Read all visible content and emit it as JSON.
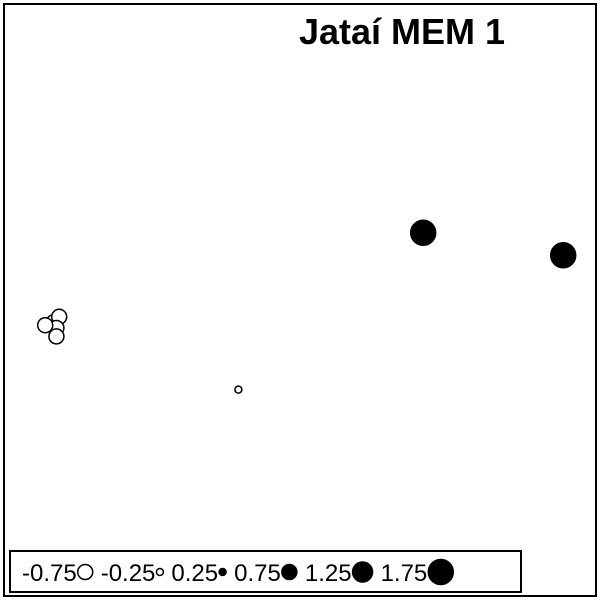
{
  "chart_data": {
    "type": "scatter",
    "title": "Jataí MEM 1",
    "xlabel": "",
    "ylabel": "",
    "grid": false,
    "legend_placement": "bottom-left",
    "fill_positive": "#000000",
    "fill_negative": "#ffffff",
    "stroke": "#000000",
    "points": [
      {
        "x": 0.72,
        "y": 0.62,
        "value": 1.75
      },
      {
        "x": 0.97,
        "y": 0.58,
        "value": 1.75
      },
      {
        "x": 0.06,
        "y": 0.46,
        "value": -0.75
      },
      {
        "x": 0.07,
        "y": 0.47,
        "value": -0.75
      },
      {
        "x": 0.065,
        "y": 0.45,
        "value": -0.75
      },
      {
        "x": 0.045,
        "y": 0.455,
        "value": -0.75
      },
      {
        "x": 0.065,
        "y": 0.435,
        "value": -0.75
      },
      {
        "x": 0.39,
        "y": 0.34,
        "value": -0.25
      }
    ],
    "legend": [
      {
        "label": "-0.75",
        "value": -0.75
      },
      {
        "label": "-0.25",
        "value": -0.25
      },
      {
        "label": "0.25",
        "value": 0.25
      },
      {
        "label": "0.75",
        "value": 0.75
      },
      {
        "label": "1.25",
        "value": 1.25
      },
      {
        "label": "1.75",
        "value": 1.75
      }
    ]
  }
}
